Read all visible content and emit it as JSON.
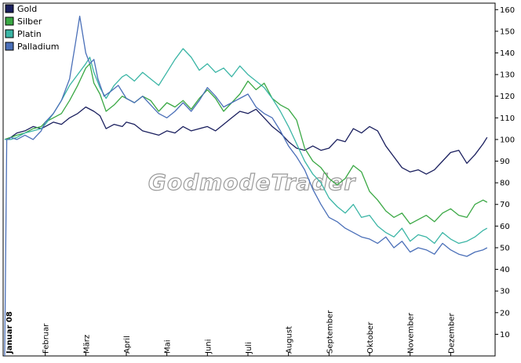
{
  "chart_data": {
    "type": "line",
    "title": "",
    "xlabel": "",
    "ylabel": "",
    "ylim": [
      0,
      163
    ],
    "yticks": [
      10,
      20,
      30,
      40,
      50,
      60,
      70,
      80,
      90,
      100,
      110,
      120,
      130,
      140,
      150,
      160
    ],
    "x_range": [
      0,
      12
    ],
    "months": [
      {
        "label": "Januar 08",
        "x": 0
      },
      {
        "label": "Februar",
        "x": 1
      },
      {
        "label": "März",
        "x": 2
      },
      {
        "label": "April",
        "x": 3
      },
      {
        "label": "Mai",
        "x": 4
      },
      {
        "label": "Juni",
        "x": 5
      },
      {
        "label": "Juli",
        "x": 6
      },
      {
        "label": "August",
        "x": 7
      },
      {
        "label": "September",
        "x": 8
      },
      {
        "label": "Oktober",
        "x": 9
      },
      {
        "label": "November",
        "x": 10
      },
      {
        "label": "Dezember",
        "x": 11
      }
    ],
    "legend_position": "top-left",
    "watermark": "GodmodeTrader",
    "series": [
      {
        "name": "Gold",
        "color": "#1a1f5e",
        "x": [
          0,
          0.15,
          0.3,
          0.5,
          0.7,
          0.9,
          1.0,
          1.2,
          1.4,
          1.6,
          1.8,
          2.0,
          2.2,
          2.35,
          2.5,
          2.7,
          2.9,
          3.0,
          3.2,
          3.4,
          3.6,
          3.8,
          4.0,
          4.2,
          4.4,
          4.6,
          4.8,
          5.0,
          5.2,
          5.4,
          5.6,
          5.8,
          6.0,
          6.2,
          6.4,
          6.6,
          6.8,
          7.0,
          7.2,
          7.4,
          7.6,
          7.8,
          8.0,
          8.2,
          8.4,
          8.6,
          8.8,
          9.0,
          9.2,
          9.4,
          9.6,
          9.8,
          10.0,
          10.2,
          10.4,
          10.6,
          10.8,
          11.0,
          11.2,
          11.4,
          11.6,
          11.8,
          11.9
        ],
        "values": [
          100,
          101,
          103,
          104,
          106,
          105,
          106,
          108,
          107,
          110,
          112,
          115,
          113,
          111,
          105,
          107,
          106,
          108,
          107,
          104,
          103,
          102,
          104,
          103,
          106,
          104,
          105,
          106,
          104,
          107,
          110,
          113,
          112,
          114,
          110,
          106,
          103,
          99,
          96,
          95,
          97,
          95,
          96,
          100,
          99,
          105,
          103,
          106,
          104,
          97,
          92,
          87,
          85,
          86,
          84,
          86,
          90,
          94,
          95,
          89,
          93,
          98,
          101
        ]
      },
      {
        "name": "Silber",
        "color": "#3aa844",
        "x": [
          0,
          0.15,
          0.3,
          0.5,
          0.7,
          0.9,
          1.0,
          1.2,
          1.4,
          1.6,
          1.8,
          2.0,
          2.1,
          2.2,
          2.35,
          2.5,
          2.7,
          2.9,
          3.0,
          3.2,
          3.4,
          3.6,
          3.8,
          4.0,
          4.2,
          4.4,
          4.6,
          4.8,
          5.0,
          5.2,
          5.4,
          5.6,
          5.8,
          6.0,
          6.2,
          6.4,
          6.6,
          6.8,
          7.0,
          7.2,
          7.4,
          7.6,
          7.8,
          8.0,
          8.2,
          8.4,
          8.6,
          8.8,
          9.0,
          9.2,
          9.4,
          9.6,
          9.8,
          10.0,
          10.2,
          10.4,
          10.6,
          10.8,
          11.0,
          11.2,
          11.4,
          11.6,
          11.8,
          11.9
        ],
        "values": [
          100,
          101,
          102,
          103,
          105,
          106,
          108,
          110,
          112,
          118,
          125,
          133,
          135,
          126,
          121,
          113,
          116,
          120,
          119,
          117,
          120,
          118,
          113,
          117,
          115,
          118,
          114,
          119,
          123,
          119,
          113,
          117,
          121,
          127,
          123,
          126,
          119,
          116,
          114,
          109,
          96,
          90,
          87,
          82,
          79,
          82,
          88,
          85,
          76,
          72,
          67,
          64,
          66,
          61,
          63,
          65,
          62,
          66,
          68,
          65,
          64,
          70,
          72,
          71
        ]
      },
      {
        "name": "Platin",
        "color": "#3ab5a5",
        "x": [
          0,
          0.15,
          0.3,
          0.5,
          0.7,
          0.9,
          1.0,
          1.2,
          1.4,
          1.6,
          1.8,
          2.0,
          2.1,
          2.2,
          2.35,
          2.5,
          2.7,
          2.9,
          3.0,
          3.2,
          3.4,
          3.6,
          3.8,
          4.0,
          4.2,
          4.4,
          4.6,
          4.8,
          5.0,
          5.2,
          5.4,
          5.6,
          5.8,
          6.0,
          6.2,
          6.4,
          6.6,
          6.8,
          7.0,
          7.2,
          7.4,
          7.6,
          7.8,
          8.0,
          8.2,
          8.4,
          8.6,
          8.8,
          9.0,
          9.2,
          9.4,
          9.6,
          9.8,
          10.0,
          10.2,
          10.4,
          10.6,
          10.8,
          11.0,
          11.2,
          11.4,
          11.6,
          11.8,
          11.9
        ],
        "values": [
          100,
          100,
          101,
          103,
          104,
          105,
          107,
          112,
          118,
          125,
          130,
          135,
          138,
          131,
          124,
          119,
          125,
          129,
          130,
          127,
          131,
          128,
          125,
          131,
          137,
          142,
          138,
          132,
          135,
          131,
          133,
          129,
          134,
          130,
          127,
          124,
          119,
          113,
          106,
          98,
          90,
          84,
          80,
          73,
          69,
          66,
          70,
          64,
          65,
          60,
          57,
          55,
          59,
          53,
          56,
          55,
          52,
          57,
          54,
          52,
          53,
          55,
          58,
          59
        ]
      },
      {
        "name": "Palladium",
        "color": "#4a6fb8",
        "x": [
          0,
          0.05,
          0.1,
          0.15,
          0.3,
          0.5,
          0.7,
          0.9,
          1.0,
          1.2,
          1.4,
          1.6,
          1.75,
          1.85,
          2.0,
          2.1,
          2.2,
          2.3,
          2.45,
          2.6,
          2.8,
          3.0,
          3.2,
          3.4,
          3.6,
          3.8,
          4.0,
          4.2,
          4.4,
          4.6,
          4.8,
          5.0,
          5.2,
          5.4,
          5.6,
          5.8,
          6.0,
          6.2,
          6.4,
          6.6,
          6.8,
          7.0,
          7.2,
          7.4,
          7.6,
          7.8,
          8.0,
          8.2,
          8.4,
          8.6,
          8.8,
          9.0,
          9.2,
          9.4,
          9.6,
          9.8,
          10.0,
          10.2,
          10.4,
          10.6,
          10.8,
          11.0,
          11.2,
          11.4,
          11.6,
          11.8,
          11.9
        ],
        "values": [
          0,
          100,
          100,
          101,
          100,
          102,
          100,
          104,
          108,
          112,
          118,
          128,
          145,
          157,
          140,
          135,
          137,
          128,
          120,
          122,
          125,
          119,
          117,
          120,
          116,
          112,
          110,
          113,
          117,
          113,
          118,
          124,
          120,
          115,
          117,
          119,
          121,
          115,
          112,
          110,
          104,
          97,
          92,
          86,
          77,
          70,
          64,
          62,
          59,
          57,
          55,
          54,
          52,
          55,
          50,
          53,
          48,
          50,
          49,
          47,
          52,
          49,
          47,
          46,
          48,
          49,
          50
        ]
      }
    ]
  }
}
